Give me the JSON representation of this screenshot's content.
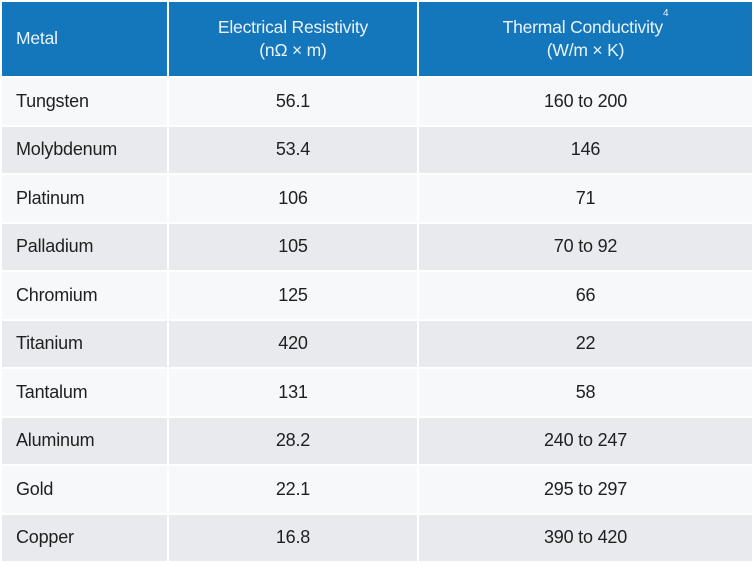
{
  "colors": {
    "header_bg": "#1577bb",
    "header_text": "#e9f3fb",
    "row_light": "#f7f8fa",
    "row_dark": "#e9eaed",
    "body_text": "#1e1f21",
    "gutter": "#ffffff"
  },
  "table": {
    "header": {
      "metal": "Metal",
      "resistivity_line1": "Electrical Resistivity",
      "resistivity_line2": "(nΩ × m)",
      "conductivity_line1": "Thermal Conductivity",
      "conductivity_footnote": "4",
      "conductivity_line2": "(W/m × K)"
    },
    "rows": [
      {
        "metal": "Tungsten",
        "resistivity": "56.1",
        "conductivity": "160 to 200"
      },
      {
        "metal": "Molybdenum",
        "resistivity": "53.4",
        "conductivity": "146"
      },
      {
        "metal": "Platinum",
        "resistivity": "106",
        "conductivity": "71"
      },
      {
        "metal": "Palladium",
        "resistivity": "105",
        "conductivity": "70 to 92"
      },
      {
        "metal": "Chromium",
        "resistivity": "125",
        "conductivity": "66"
      },
      {
        "metal": "Titanium",
        "resistivity": "420",
        "conductivity": "22"
      },
      {
        "metal": "Tantalum",
        "resistivity": "131",
        "conductivity": "58"
      },
      {
        "metal": "Aluminum",
        "resistivity": "28.2",
        "conductivity": "240 to 247"
      },
      {
        "metal": "Gold",
        "resistivity": "22.1",
        "conductivity": "295 to 297"
      },
      {
        "metal": "Copper",
        "resistivity": "16.8",
        "conductivity": "390 to 420"
      }
    ]
  },
  "chart_data": {
    "type": "table",
    "columns": [
      "Metal",
      "Electrical Resistivity (nΩ × m)",
      "Thermal Conductivity⁴ (W/m × K)"
    ],
    "rows": [
      [
        "Tungsten",
        56.1,
        "160 to 200"
      ],
      [
        "Molybdenum",
        53.4,
        "146"
      ],
      [
        "Platinum",
        106,
        "71"
      ],
      [
        "Palladium",
        105,
        "70 to 92"
      ],
      [
        "Chromium",
        125,
        "66"
      ],
      [
        "Titanium",
        420,
        "22"
      ],
      [
        "Tantalum",
        131,
        "58"
      ],
      [
        "Aluminum",
        28.2,
        "240 to 247"
      ],
      [
        "Gold",
        22.1,
        "295 to 297"
      ],
      [
        "Copper",
        16.8,
        "390 to 420"
      ]
    ],
    "notes": "Footnote marker 4 appears as superscript after Thermal Conductivity header"
  }
}
